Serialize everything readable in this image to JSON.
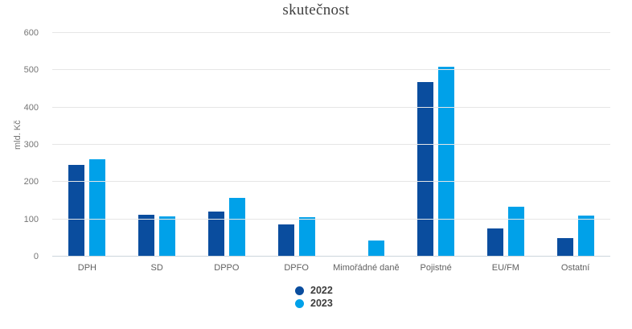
{
  "chart_data": {
    "type": "bar",
    "title": "skutečnost",
    "xlabel": "",
    "ylabel": "mld. Kč",
    "categories": [
      "DPH",
      "SD",
      "DPPO",
      "DPFO",
      "Mimořádné daně",
      "Pojistné",
      "EU/FM",
      "Ostatní"
    ],
    "series": [
      {
        "name": "2022",
        "color": "#0A4D9E",
        "values": [
          246,
          113,
          120,
          86,
          0,
          469,
          76,
          50
        ]
      },
      {
        "name": "2023",
        "color": "#00A1E9",
        "values": [
          261,
          108,
          158,
          106,
          43,
          510,
          134,
          109
        ]
      }
    ],
    "ylim": [
      0,
      600
    ],
    "yticks": [
      0,
      100,
      200,
      300,
      400,
      500,
      600
    ],
    "grid": true,
    "legend_position": "bottom"
  }
}
